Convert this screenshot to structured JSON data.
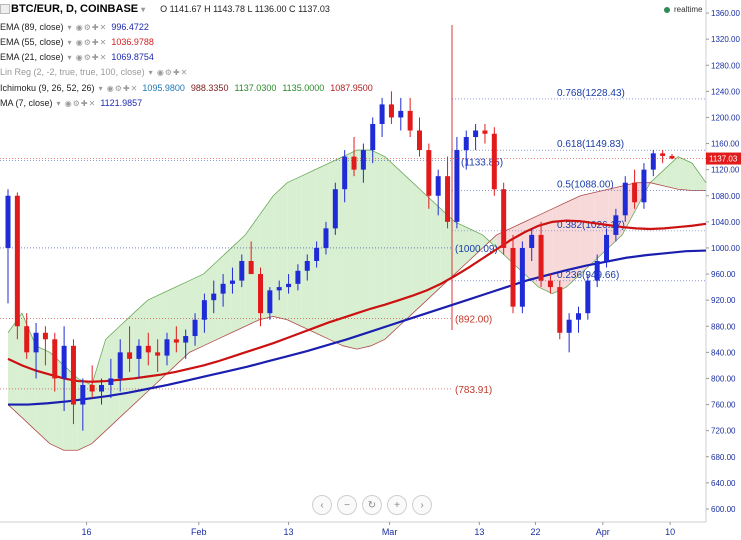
{
  "header": {
    "symbol": "BTC/EUR, D, COINBASE",
    "ohlc": {
      "o_label": "O",
      "o": "1141.67",
      "h_label": "H",
      "h": "1143.78",
      "l_label": "L",
      "l": "1136.00",
      "c_label": "C",
      "c": "1137.03"
    },
    "realtime": "realtime"
  },
  "indicators": [
    {
      "name": "EMA (89, close)",
      "values": [
        "996.4722"
      ],
      "colors": [
        "#1f2bb0"
      ]
    },
    {
      "name": "EMA (55, close)",
      "values": [
        "1036.9788"
      ],
      "colors": [
        "#d42020"
      ]
    },
    {
      "name": "EMA (21, close)",
      "values": [
        "1069.8754"
      ],
      "colors": [
        "#1f2bb0"
      ]
    },
    {
      "name": "Lin Reg (2, -2, true, true, 100, close)",
      "values": [],
      "colors": []
    },
    {
      "name": "Ichimoku (9, 26, 52, 26)",
      "values": [
        "1095.9800",
        "988.3350",
        "1137.0300",
        "1135.0000",
        "1087.9500"
      ],
      "colors": [
        "#1f77b4",
        "#7a1a1a",
        "#2a8a2a",
        "#2a8a2a",
        "#b02020"
      ]
    },
    {
      "name": "MA (7, close)",
      "values": [
        "1121.9857"
      ],
      "colors": [
        "#1f2bb0"
      ]
    }
  ],
  "colors": {
    "up": "#1f2bd6",
    "down": "#e11b1b",
    "ema55": "#cc1111",
    "ema89": "#1a1fb0",
    "cloud_green": "#d9efd2",
    "cloud_red": "#f8d9d9",
    "fib": "#1a3da8"
  },
  "nav_icons": [
    "chevron-left-icon",
    "minus-icon",
    "reset-icon",
    "plus-icon",
    "chevron-right-icon"
  ],
  "chart_data": {
    "type": "candlestick",
    "title": "BTC/EUR, D, COINBASE",
    "ylim": [
      580,
      1380
    ],
    "y_ticks": [
      "600.00",
      "640.00",
      "680.00",
      "720.00",
      "760.00",
      "800.00",
      "840.00",
      "880.00",
      "920.00",
      "960.00",
      "1000.00",
      "1040.00",
      "1080.00",
      "1120.00",
      "1160.00",
      "1200.00",
      "1240.00",
      "1280.00",
      "1320.00",
      "1360.00"
    ],
    "x_ticks": [
      "16",
      "Feb",
      "13",
      "Mar",
      "13",
      "22",
      "Apr",
      "10"
    ],
    "current_price_label": "1137.03",
    "fib_labels": [
      "0.768(1228.43)",
      "0.618(1149.83)",
      "0.5(1088.00)",
      "0.382(1026.17)",
      "0.236(949.66)"
    ],
    "fib_levels": [
      1228.43,
      1149.83,
      1088.0,
      1026.17,
      949.66
    ],
    "level_labels": [
      "(1000.09)",
      "(892.00)",
      "(783.91)",
      "(1133.85)"
    ],
    "level_values": [
      1000.09,
      892.0,
      783.91,
      1133.85
    ],
    "candles": [
      [
        1000,
        1090,
        915,
        1080
      ],
      [
        1080,
        1085,
        860,
        880
      ],
      [
        880,
        900,
        830,
        840
      ],
      [
        840,
        885,
        800,
        870
      ],
      [
        870,
        880,
        820,
        860
      ],
      [
        860,
        870,
        780,
        800
      ],
      [
        800,
        880,
        750,
        850
      ],
      [
        850,
        860,
        730,
        760
      ],
      [
        760,
        800,
        720,
        790
      ],
      [
        790,
        820,
        770,
        780
      ],
      [
        780,
        800,
        760,
        790
      ],
      [
        790,
        830,
        770,
        800
      ],
      [
        800,
        860,
        780,
        840
      ],
      [
        840,
        880,
        810,
        830
      ],
      [
        830,
        860,
        800,
        850
      ],
      [
        850,
        870,
        820,
        840
      ],
      [
        840,
        860,
        810,
        835
      ],
      [
        835,
        870,
        820,
        860
      ],
      [
        860,
        880,
        840,
        855
      ],
      [
        855,
        875,
        830,
        865
      ],
      [
        865,
        900,
        850,
        890
      ],
      [
        890,
        930,
        870,
        920
      ],
      [
        920,
        950,
        900,
        930
      ],
      [
        930,
        960,
        910,
        945
      ],
      [
        945,
        970,
        930,
        950
      ],
      [
        950,
        990,
        940,
        980
      ],
      [
        980,
        1010,
        960,
        960
      ],
      [
        960,
        970,
        880,
        900
      ],
      [
        900,
        940,
        890,
        935
      ],
      [
        935,
        950,
        920,
        940
      ],
      [
        940,
        960,
        930,
        945
      ],
      [
        945,
        975,
        935,
        965
      ],
      [
        965,
        990,
        950,
        980
      ],
      [
        980,
        1010,
        970,
        1000
      ],
      [
        1000,
        1040,
        990,
        1030
      ],
      [
        1030,
        1100,
        1020,
        1090
      ],
      [
        1090,
        1150,
        1070,
        1140
      ],
      [
        1140,
        1170,
        1110,
        1120
      ],
      [
        1120,
        1160,
        1100,
        1150
      ],
      [
        1150,
        1200,
        1130,
        1190
      ],
      [
        1190,
        1230,
        1170,
        1220
      ],
      [
        1220,
        1240,
        1190,
        1200
      ],
      [
        1200,
        1230,
        1180,
        1210
      ],
      [
        1210,
        1230,
        1170,
        1180
      ],
      [
        1180,
        1200,
        1140,
        1150
      ],
      [
        1150,
        1160,
        1060,
        1080
      ],
      [
        1080,
        1120,
        1050,
        1110
      ],
      [
        1110,
        1140,
        1030,
        1040
      ],
      [
        1040,
        1170,
        1030,
        1150
      ],
      [
        1150,
        1180,
        1120,
        1170
      ],
      [
        1170,
        1190,
        1150,
        1180
      ],
      [
        1180,
        1190,
        1160,
        1175
      ],
      [
        1175,
        1185,
        1080,
        1090
      ],
      [
        1090,
        1100,
        990,
        1000
      ],
      [
        1000,
        1020,
        900,
        910
      ],
      [
        910,
        1010,
        900,
        1000
      ],
      [
        1000,
        1030,
        980,
        1020
      ],
      [
        1020,
        1040,
        940,
        950
      ],
      [
        950,
        960,
        930,
        940
      ],
      [
        940,
        950,
        860,
        870
      ],
      [
        870,
        900,
        840,
        890
      ],
      [
        890,
        910,
        870,
        900
      ],
      [
        900,
        960,
        890,
        950
      ],
      [
        950,
        990,
        940,
        980
      ],
      [
        980,
        1030,
        970,
        1020
      ],
      [
        1020,
        1060,
        1010,
        1050
      ],
      [
        1050,
        1110,
        1040,
        1100
      ],
      [
        1100,
        1120,
        1060,
        1070
      ],
      [
        1070,
        1130,
        1060,
        1120
      ],
      [
        1120,
        1150,
        1110,
        1145
      ],
      [
        1145,
        1150,
        1130,
        1141
      ],
      [
        1141,
        1144,
        1136,
        1137
      ]
    ],
    "ema55": [
      830,
      820,
      812,
      806,
      800,
      796,
      795,
      796,
      798,
      800,
      803,
      806,
      810,
      815,
      820,
      826,
      833,
      840,
      847,
      854,
      862,
      870,
      878,
      886,
      893,
      900,
      907,
      913,
      920,
      927,
      935,
      945,
      957,
      970,
      984,
      998,
      1012,
      1024,
      1034,
      1040,
      1042,
      1041,
      1038,
      1035,
      1032,
      1030,
      1029,
      1030,
      1032,
      1034,
      1037
    ],
    "ema89": [
      760,
      760,
      762,
      765,
      769,
      773,
      778,
      784,
      790,
      797,
      804,
      811,
      818,
      826,
      834,
      842,
      851,
      860,
      870,
      880,
      890,
      900,
      910,
      920,
      930,
      940,
      950,
      958,
      966,
      973,
      979,
      985,
      989,
      992,
      995,
      996
    ],
    "cloud_top": [
      870,
      900,
      850,
      840,
      820,
      800,
      790,
      860,
      880,
      900,
      920,
      930,
      940,
      950,
      960,
      980,
      1000,
      1020,
      1050,
      1080,
      1100,
      1110,
      1120,
      1130,
      1140,
      1150,
      1150,
      1140,
      1120,
      1100,
      1080,
      1060,
      1040,
      1030,
      1020,
      1000,
      980,
      960,
      940,
      930,
      940,
      960,
      980,
      1000,
      1020,
      1060,
      1100,
      1120,
      1140,
      1130,
      1100
    ],
    "cloud_bottom": [
      760,
      740,
      720,
      700,
      690,
      690,
      700,
      720,
      740,
      760,
      780,
      800,
      820,
      840,
      850,
      860,
      870,
      880,
      890,
      895,
      890,
      880,
      870,
      860,
      850,
      845,
      850,
      860,
      880,
      900,
      920,
      940,
      960,
      980,
      1000,
      1020,
      1030,
      1040,
      1050,
      1060,
      1070,
      1080,
      1085,
      1090,
      1095,
      1100,
      1100,
      1095,
      1090,
      1088,
      1088
    ]
  }
}
